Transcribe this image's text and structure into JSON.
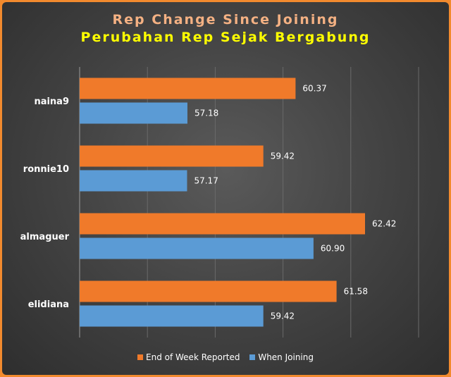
{
  "chart_data": {
    "type": "bar",
    "orientation": "horizontal",
    "title": "Rep Change Since Joining",
    "subtitle": "Perubahan Rep Sejak Bergabung",
    "categories": [
      "naina9",
      "ronnie10",
      "almaguer",
      "elidiana"
    ],
    "series": [
      {
        "name": "End of Week Reported",
        "color": "#f07a2a",
        "values": [
          60.37,
          59.42,
          62.42,
          61.58
        ],
        "labels": [
          "60.37",
          "59.42",
          "62.42",
          "61.58"
        ]
      },
      {
        "name": "When Joining",
        "color": "#5b9bd5",
        "values": [
          57.18,
          57.17,
          60.9,
          59.42
        ],
        "labels": [
          "57.18",
          "57.17",
          "60.90",
          "59.42"
        ]
      }
    ],
    "xlim": [
      54,
      64
    ],
    "xlabel": "",
    "ylabel": "",
    "grid": true,
    "legend_position": "bottom"
  }
}
